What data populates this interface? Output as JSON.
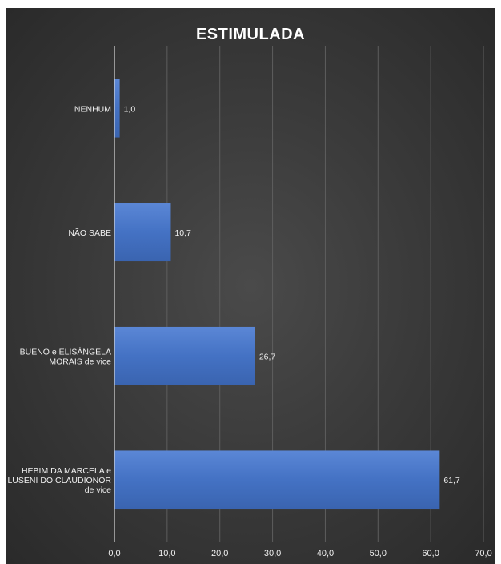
{
  "chart_data": {
    "type": "bar",
    "orientation": "horizontal",
    "title": "ESTIMULADA",
    "categories": [
      [
        "NENHUM"
      ],
      [
        "NÃO SABE"
      ],
      [
        "BUENO e ELISÂNGELA",
        "MORAIS de vice"
      ],
      [
        "HEBIM DA MARCELA e",
        "LUSENI DO CLAUDIONOR",
        "de vice"
      ]
    ],
    "values": [
      1.0,
      10.7,
      26.7,
      61.7
    ],
    "value_labels": [
      "1,0",
      "10,7",
      "26,7",
      "61,7"
    ],
    "xlim": [
      0,
      70
    ],
    "xticks": [
      "0,0",
      "10,0",
      "20,0",
      "30,0",
      "40,0",
      "50,0",
      "60,0",
      "70,0"
    ],
    "xlabel": "",
    "ylabel": "",
    "grid": true,
    "legend": "none",
    "bar_color": "#4472c4",
    "background_color": "#3a3a3a"
  }
}
